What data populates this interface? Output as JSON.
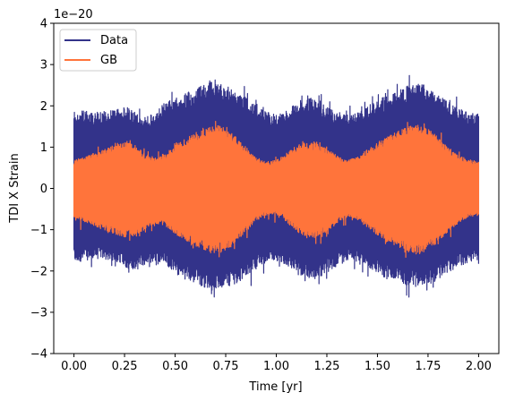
{
  "chart_data": {
    "type": "line",
    "title": "",
    "xlabel": "Time [yr]",
    "ylabel": "TDI X Strain",
    "y_offset_label": "1e−20",
    "xlim": [
      -0.1,
      2.1
    ],
    "ylim": [
      -4,
      4
    ],
    "x_ticks": [
      0.0,
      0.25,
      0.5,
      0.75,
      1.0,
      1.25,
      1.5,
      1.75,
      2.0
    ],
    "x_tick_labels": [
      "0.00",
      "0.25",
      "0.50",
      "0.75",
      "1.00",
      "1.25",
      "1.50",
      "1.75",
      "2.00"
    ],
    "y_ticks": [
      -4,
      -3,
      -2,
      -1,
      0,
      1,
      2,
      3,
      4
    ],
    "y_tick_labels": [
      "−4",
      "−3",
      "−2",
      "−1",
      "0",
      "1",
      "2",
      "3",
      "4"
    ],
    "grid": false,
    "legend_position": "top-left",
    "series": [
      {
        "name": "Data",
        "color": "#33338a",
        "envelope": {
          "x": [
            0.0,
            0.1,
            0.2,
            0.25,
            0.3,
            0.35,
            0.4,
            0.45,
            0.5,
            0.55,
            0.6,
            0.65,
            0.7,
            0.75,
            0.8,
            0.85,
            0.9,
            0.95,
            1.0,
            1.05,
            1.1,
            1.15,
            1.2,
            1.25,
            1.3,
            1.35,
            1.4,
            1.45,
            1.5,
            1.55,
            1.6,
            1.65,
            1.7,
            1.75,
            1.8,
            1.85,
            1.9,
            1.95,
            2.0
          ],
          "upper": [
            1.9,
            1.85,
            1.9,
            2.0,
            1.85,
            1.75,
            1.8,
            2.1,
            2.2,
            2.3,
            2.4,
            2.55,
            2.6,
            2.5,
            2.35,
            2.2,
            2.0,
            1.85,
            1.8,
            1.9,
            2.1,
            2.25,
            2.2,
            2.0,
            1.85,
            1.8,
            1.9,
            2.0,
            2.15,
            2.25,
            2.35,
            2.5,
            2.55,
            2.5,
            2.3,
            2.15,
            1.95,
            1.85,
            1.8
          ],
          "lower": [
            -1.8,
            -1.7,
            -1.75,
            -1.9,
            -2.0,
            -1.85,
            -1.75,
            -1.8,
            -2.05,
            -2.2,
            -2.3,
            -2.4,
            -2.45,
            -2.4,
            -2.3,
            -2.15,
            -1.95,
            -1.8,
            -1.75,
            -1.85,
            -2.0,
            -2.15,
            -2.2,
            -2.05,
            -1.9,
            -1.75,
            -1.8,
            -1.95,
            -2.05,
            -2.2,
            -2.25,
            -2.35,
            -2.4,
            -2.35,
            -2.2,
            -2.05,
            -1.9,
            -1.8,
            -1.75
          ]
        }
      },
      {
        "name": "GB",
        "color": "#ff743b",
        "envelope": {
          "x": [
            0.0,
            0.1,
            0.2,
            0.25,
            0.3,
            0.35,
            0.4,
            0.45,
            0.5,
            0.55,
            0.6,
            0.65,
            0.7,
            0.75,
            0.8,
            0.85,
            0.9,
            0.95,
            1.0,
            1.05,
            1.1,
            1.15,
            1.2,
            1.25,
            1.3,
            1.35,
            1.4,
            1.45,
            1.5,
            1.55,
            1.6,
            1.65,
            1.7,
            1.75,
            1.8,
            1.85,
            1.9,
            1.95,
            2.0
          ],
          "upper": [
            0.7,
            0.85,
            1.05,
            1.15,
            1.05,
            0.85,
            0.75,
            0.85,
            1.05,
            1.2,
            1.35,
            1.45,
            1.55,
            1.45,
            1.25,
            1.0,
            0.75,
            0.65,
            0.7,
            0.85,
            1.05,
            1.15,
            1.1,
            0.95,
            0.8,
            0.7,
            0.75,
            0.95,
            1.1,
            1.25,
            1.4,
            1.5,
            1.55,
            1.45,
            1.25,
            1.0,
            0.8,
            0.7,
            0.65
          ],
          "lower": [
            -0.7,
            -0.9,
            -1.1,
            -1.2,
            -1.15,
            -1.0,
            -0.85,
            -0.9,
            -1.1,
            -1.25,
            -1.4,
            -1.5,
            -1.6,
            -1.5,
            -1.3,
            -1.05,
            -0.8,
            -0.65,
            -0.6,
            -0.8,
            -1.05,
            -1.2,
            -1.2,
            -1.05,
            -0.85,
            -0.7,
            -0.75,
            -0.95,
            -1.15,
            -1.3,
            -1.4,
            -1.55,
            -1.6,
            -1.5,
            -1.3,
            -1.05,
            -0.85,
            -0.7,
            -0.65
          ]
        }
      }
    ]
  }
}
